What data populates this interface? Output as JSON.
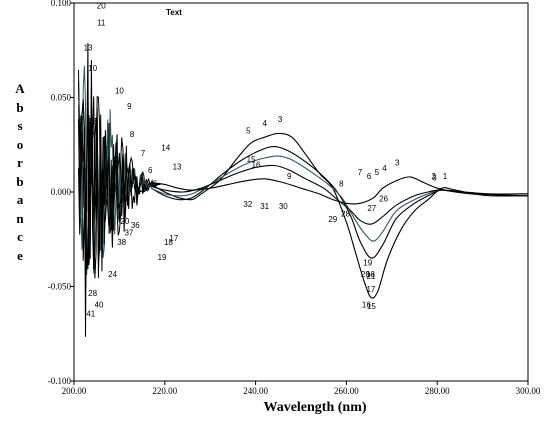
{
  "chart_data": {
    "type": "line",
    "title": "",
    "panel_text": "Text",
    "xlabel": "Wavelength (nm)",
    "ylabel": "Absorbance",
    "xlim": [
      200,
      300
    ],
    "ylim": [
      -0.1,
      0.1
    ],
    "x_ticks": [
      "200.00",
      "220.00",
      "240.00",
      "260.00",
      "280.00",
      "300.00"
    ],
    "y_ticks": [
      "0.100",
      "0.050",
      "0.000",
      "-0.050",
      "-0.100"
    ],
    "grid": false,
    "legend": "none",
    "line_color": "#000000",
    "series": [
      {
        "color": "#000000",
        "points": [
          [
            217,
            0.004
          ],
          [
            220,
            0.0
          ],
          [
            223,
            -0.003
          ],
          [
            226,
            -0.004
          ],
          [
            228,
            -0.001
          ],
          [
            232,
            0.006
          ],
          [
            236,
            0.018
          ],
          [
            239,
            0.026
          ],
          [
            242,
            0.029
          ],
          [
            245,
            0.031
          ],
          [
            248,
            0.029
          ],
          [
            251,
            0.02
          ],
          [
            254,
            0.01
          ],
          [
            257,
            0.002
          ],
          [
            260,
            -0.016
          ],
          [
            262,
            -0.032
          ],
          [
            264,
            -0.048
          ],
          [
            265.5,
            -0.056
          ],
          [
            267,
            -0.052
          ],
          [
            269,
            -0.036
          ],
          [
            272,
            -0.02
          ],
          [
            275,
            -0.01
          ],
          [
            278,
            -0.004
          ],
          [
            281,
            0.002
          ],
          [
            284,
            0.001
          ],
          [
            288,
            -0.001
          ],
          [
            292,
            -0.002
          ],
          [
            300,
            -0.002
          ]
        ]
      },
      {
        "color": "#000000",
        "points": [
          [
            217,
            0.002
          ],
          [
            220,
            -0.002
          ],
          [
            223,
            -0.004
          ],
          [
            226,
            -0.003
          ],
          [
            229,
            0.002
          ],
          [
            233,
            0.01
          ],
          [
            237,
            0.017
          ],
          [
            241,
            0.022
          ],
          [
            244,
            0.024
          ],
          [
            247,
            0.022
          ],
          [
            251,
            0.016
          ],
          [
            255,
            0.008
          ],
          [
            258,
            0.0
          ],
          [
            261,
            -0.013
          ],
          [
            263,
            -0.026
          ],
          [
            265.5,
            -0.035
          ],
          [
            268,
            -0.028
          ],
          [
            271,
            -0.014
          ],
          [
            275,
            -0.006
          ],
          [
            278,
            -0.002
          ],
          [
            281,
            0.001
          ],
          [
            286,
            0.0
          ],
          [
            292,
            -0.001
          ],
          [
            300,
            -0.001
          ]
        ]
      },
      {
        "color": "#2d5a5a",
        "points": [
          [
            217,
            0.002
          ],
          [
            220,
            -0.001
          ],
          [
            223,
            -0.002
          ],
          [
            226,
            -0.001
          ],
          [
            230,
            0.004
          ],
          [
            234,
            0.01
          ],
          [
            238,
            0.015
          ],
          [
            242,
            0.018
          ],
          [
            245,
            0.019
          ],
          [
            248,
            0.017
          ],
          [
            252,
            0.011
          ],
          [
            256,
            0.004
          ],
          [
            259,
            -0.003
          ],
          [
            262,
            -0.015
          ],
          [
            264,
            -0.022
          ],
          [
            266,
            -0.026
          ],
          [
            268,
            -0.021
          ],
          [
            271,
            -0.01
          ],
          [
            275,
            -0.004
          ],
          [
            278,
            -0.001
          ],
          [
            281,
            0.001
          ],
          [
            288,
            -0.001
          ],
          [
            300,
            -0.001
          ]
        ]
      },
      {
        "color": "#000000",
        "points": [
          [
            217,
            0.003
          ],
          [
            220,
            0.001
          ],
          [
            224,
            0.0
          ],
          [
            228,
            0.002
          ],
          [
            232,
            0.006
          ],
          [
            236,
            0.01
          ],
          [
            240,
            0.013
          ],
          [
            244,
            0.014
          ],
          [
            247,
            0.012
          ],
          [
            251,
            0.007
          ],
          [
            255,
            0.002
          ],
          [
            258,
            -0.004
          ],
          [
            261,
            -0.01
          ],
          [
            263,
            -0.015
          ],
          [
            265.5,
            -0.017
          ],
          [
            268,
            -0.013
          ],
          [
            271,
            -0.007
          ],
          [
            275,
            -0.002
          ],
          [
            278,
            0.0
          ],
          [
            281,
            0.001
          ],
          [
            288,
            -0.001
          ],
          [
            300,
            -0.002
          ]
        ]
      },
      {
        "color": "#000000",
        "points": [
          [
            217,
            0.005
          ],
          [
            220,
            0.004
          ],
          [
            223,
            0.002
          ],
          [
            226,
            0.001
          ],
          [
            230,
            0.002
          ],
          [
            234,
            0.004
          ],
          [
            238,
            0.006
          ],
          [
            242,
            0.007
          ],
          [
            246,
            0.005
          ],
          [
            250,
            0.002
          ],
          [
            254,
            -0.001
          ],
          [
            257,
            -0.004
          ],
          [
            260,
            -0.006
          ],
          [
            263,
            -0.006
          ],
          [
            266,
            -0.003
          ],
          [
            268,
            0.002
          ],
          [
            271,
            0.006
          ],
          [
            274,
            0.008
          ],
          [
            277,
            0.005
          ],
          [
            280,
            0.002
          ],
          [
            284,
            0.0
          ],
          [
            290,
            -0.001
          ],
          [
            300,
            -0.001
          ]
        ]
      }
    ],
    "noise_region": {
      "x_min": 201,
      "x_max": 219,
      "amplitude": 0.095
    },
    "peak_labels": [
      {
        "text": "1",
        "x": 281.7,
        "y": 0.007
      },
      {
        "text": "2",
        "x": 279.2,
        "y": 0.007
      },
      {
        "text": "3",
        "x": 279.4,
        "y": 0.006
      },
      {
        "text": "3",
        "x": 271.2,
        "y": 0.014
      },
      {
        "text": "4",
        "x": 268.4,
        "y": 0.011
      },
      {
        "text": "5",
        "x": 266.7,
        "y": 0.009
      },
      {
        "text": "6",
        "x": 265.0,
        "y": 0.007
      },
      {
        "text": "7",
        "x": 263.0,
        "y": 0.009
      },
      {
        "text": "8",
        "x": 258.9,
        "y": 0.003
      },
      {
        "text": "9",
        "x": 247.4,
        "y": 0.007
      },
      {
        "text": "5",
        "x": 238.4,
        "y": 0.031
      },
      {
        "text": "4",
        "x": 242.0,
        "y": 0.035
      },
      {
        "text": "3",
        "x": 245.4,
        "y": 0.037
      },
      {
        "text": "13",
        "x": 222.7,
        "y": 0.012
      },
      {
        "text": "14",
        "x": 220.2,
        "y": 0.022
      },
      {
        "text": "15",
        "x": 239.0,
        "y": 0.016
      },
      {
        "text": "16",
        "x": 240.1,
        "y": 0.013
      },
      {
        "text": "26",
        "x": 268.2,
        "y": -0.005
      },
      {
        "text": "27",
        "x": 265.6,
        "y": -0.01
      },
      {
        "text": "28",
        "x": 259.8,
        "y": -0.013
      },
      {
        "text": "29",
        "x": 257.0,
        "y": -0.016
      },
      {
        "text": "30",
        "x": 246.1,
        "y": -0.009
      },
      {
        "text": "31",
        "x": 242.0,
        "y": -0.009
      },
      {
        "text": "32",
        "x": 238.3,
        "y": -0.008
      },
      {
        "text": "16",
        "x": 264.4,
        "y": -0.061
      },
      {
        "text": "15",
        "x": 265.5,
        "y": -0.062
      },
      {
        "text": "17",
        "x": 265.4,
        "y": -0.053
      },
      {
        "text": "18",
        "x": 265.3,
        "y": -0.045
      },
      {
        "text": "19",
        "x": 264.7,
        "y": -0.039
      },
      {
        "text": "20",
        "x": 264.2,
        "y": -0.045
      },
      {
        "text": "21",
        "x": 265.4,
        "y": -0.046
      },
      {
        "text": "19",
        "x": 219.4,
        "y": -0.036
      },
      {
        "text": "18",
        "x": 220.8,
        "y": -0.028
      },
      {
        "text": "17",
        "x": 222.0,
        "y": -0.026
      },
      {
        "text": "20",
        "x": 206.0,
        "y": 0.097
      },
      {
        "text": "11",
        "x": 206.0,
        "y": 0.088
      },
      {
        "text": "13",
        "x": 203.1,
        "y": 0.075
      },
      {
        "text": "10",
        "x": 204.1,
        "y": 0.064
      },
      {
        "text": "10",
        "x": 210.0,
        "y": 0.052
      },
      {
        "text": "18",
        "x": 203.6,
        "y": 0.029
      },
      {
        "text": "12",
        "x": 204.0,
        "y": 0.036
      },
      {
        "text": "9",
        "x": 212.2,
        "y": 0.044
      },
      {
        "text": "8",
        "x": 212.8,
        "y": 0.029
      },
      {
        "text": "7",
        "x": 215.2,
        "y": 0.019
      },
      {
        "text": "6",
        "x": 216.8,
        "y": 0.01
      },
      {
        "text": "5",
        "x": 217.9,
        "y": 0.003
      },
      {
        "text": "38",
        "x": 210.5,
        "y": -0.028
      },
      {
        "text": "37",
        "x": 212.1,
        "y": -0.023
      },
      {
        "text": "36",
        "x": 213.5,
        "y": -0.019
      },
      {
        "text": "24",
        "x": 208.5,
        "y": -0.045
      },
      {
        "text": "40",
        "x": 205.5,
        "y": -0.061
      },
      {
        "text": "41",
        "x": 203.7,
        "y": -0.066
      },
      {
        "text": "28",
        "x": 204.1,
        "y": -0.055
      },
      {
        "text": "20",
        "x": 211.2,
        "y": -0.017
      }
    ]
  }
}
